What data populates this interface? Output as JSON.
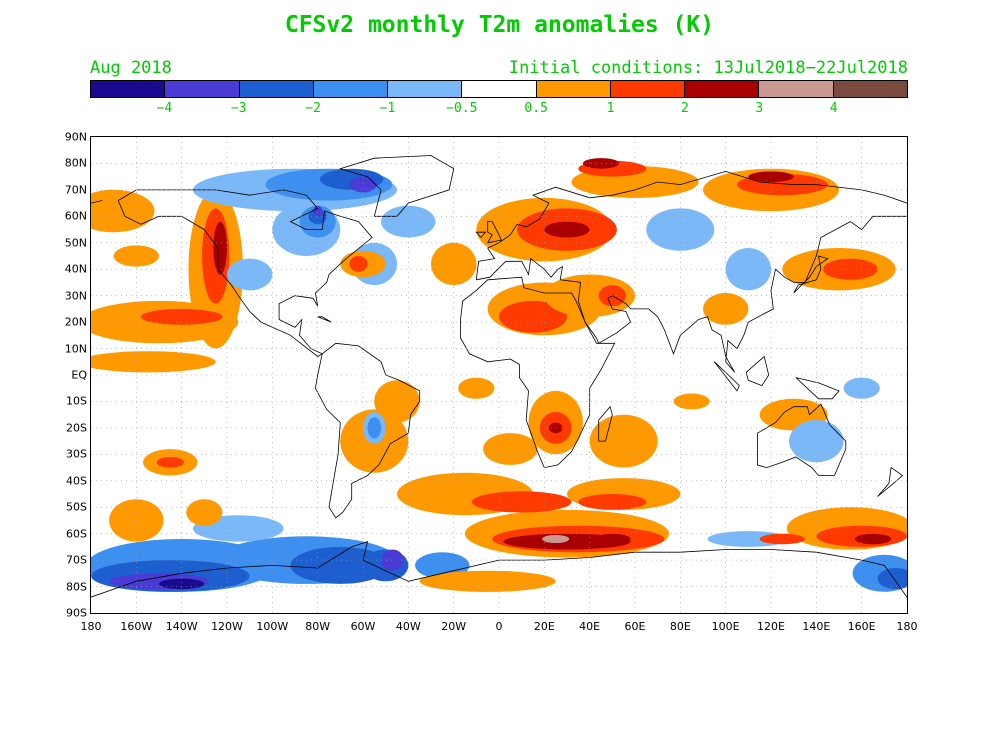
{
  "title": "CFSv2 monthly T2m anomalies (K)",
  "valid_month": "Aug 2018",
  "initial_conditions": "Initial conditions: 13Jul2018−22Jul2018",
  "colorbar": {
    "colors": [
      "#1a0a8f",
      "#4a3ad6",
      "#1e5fcf",
      "#3d8ff0",
      "#7ab8f8",
      "#ffffff",
      "#ff9900",
      "#ff3a00",
      "#a80000",
      "#c99a90",
      "#7a4a3e"
    ],
    "labels": [
      "−4",
      "−3",
      "−2",
      "−1",
      "−0.5",
      "0.5",
      "1",
      "2",
      "3",
      "4"
    ]
  },
  "map": {
    "lat_labels": [
      "90N",
      "80N",
      "70N",
      "60N",
      "50N",
      "40N",
      "30N",
      "20N",
      "10N",
      "EQ",
      "10S",
      "20S",
      "30S",
      "40S",
      "50S",
      "60S",
      "70S",
      "80S",
      "90S"
    ],
    "lon_labels": [
      "180",
      "160W",
      "140W",
      "120W",
      "100W",
      "80W",
      "60W",
      "40W",
      "20W",
      "0",
      "20E",
      "40E",
      "60E",
      "80E",
      "100E",
      "120E",
      "140E",
      "160E",
      "180"
    ],
    "grid": "dotted"
  }
}
